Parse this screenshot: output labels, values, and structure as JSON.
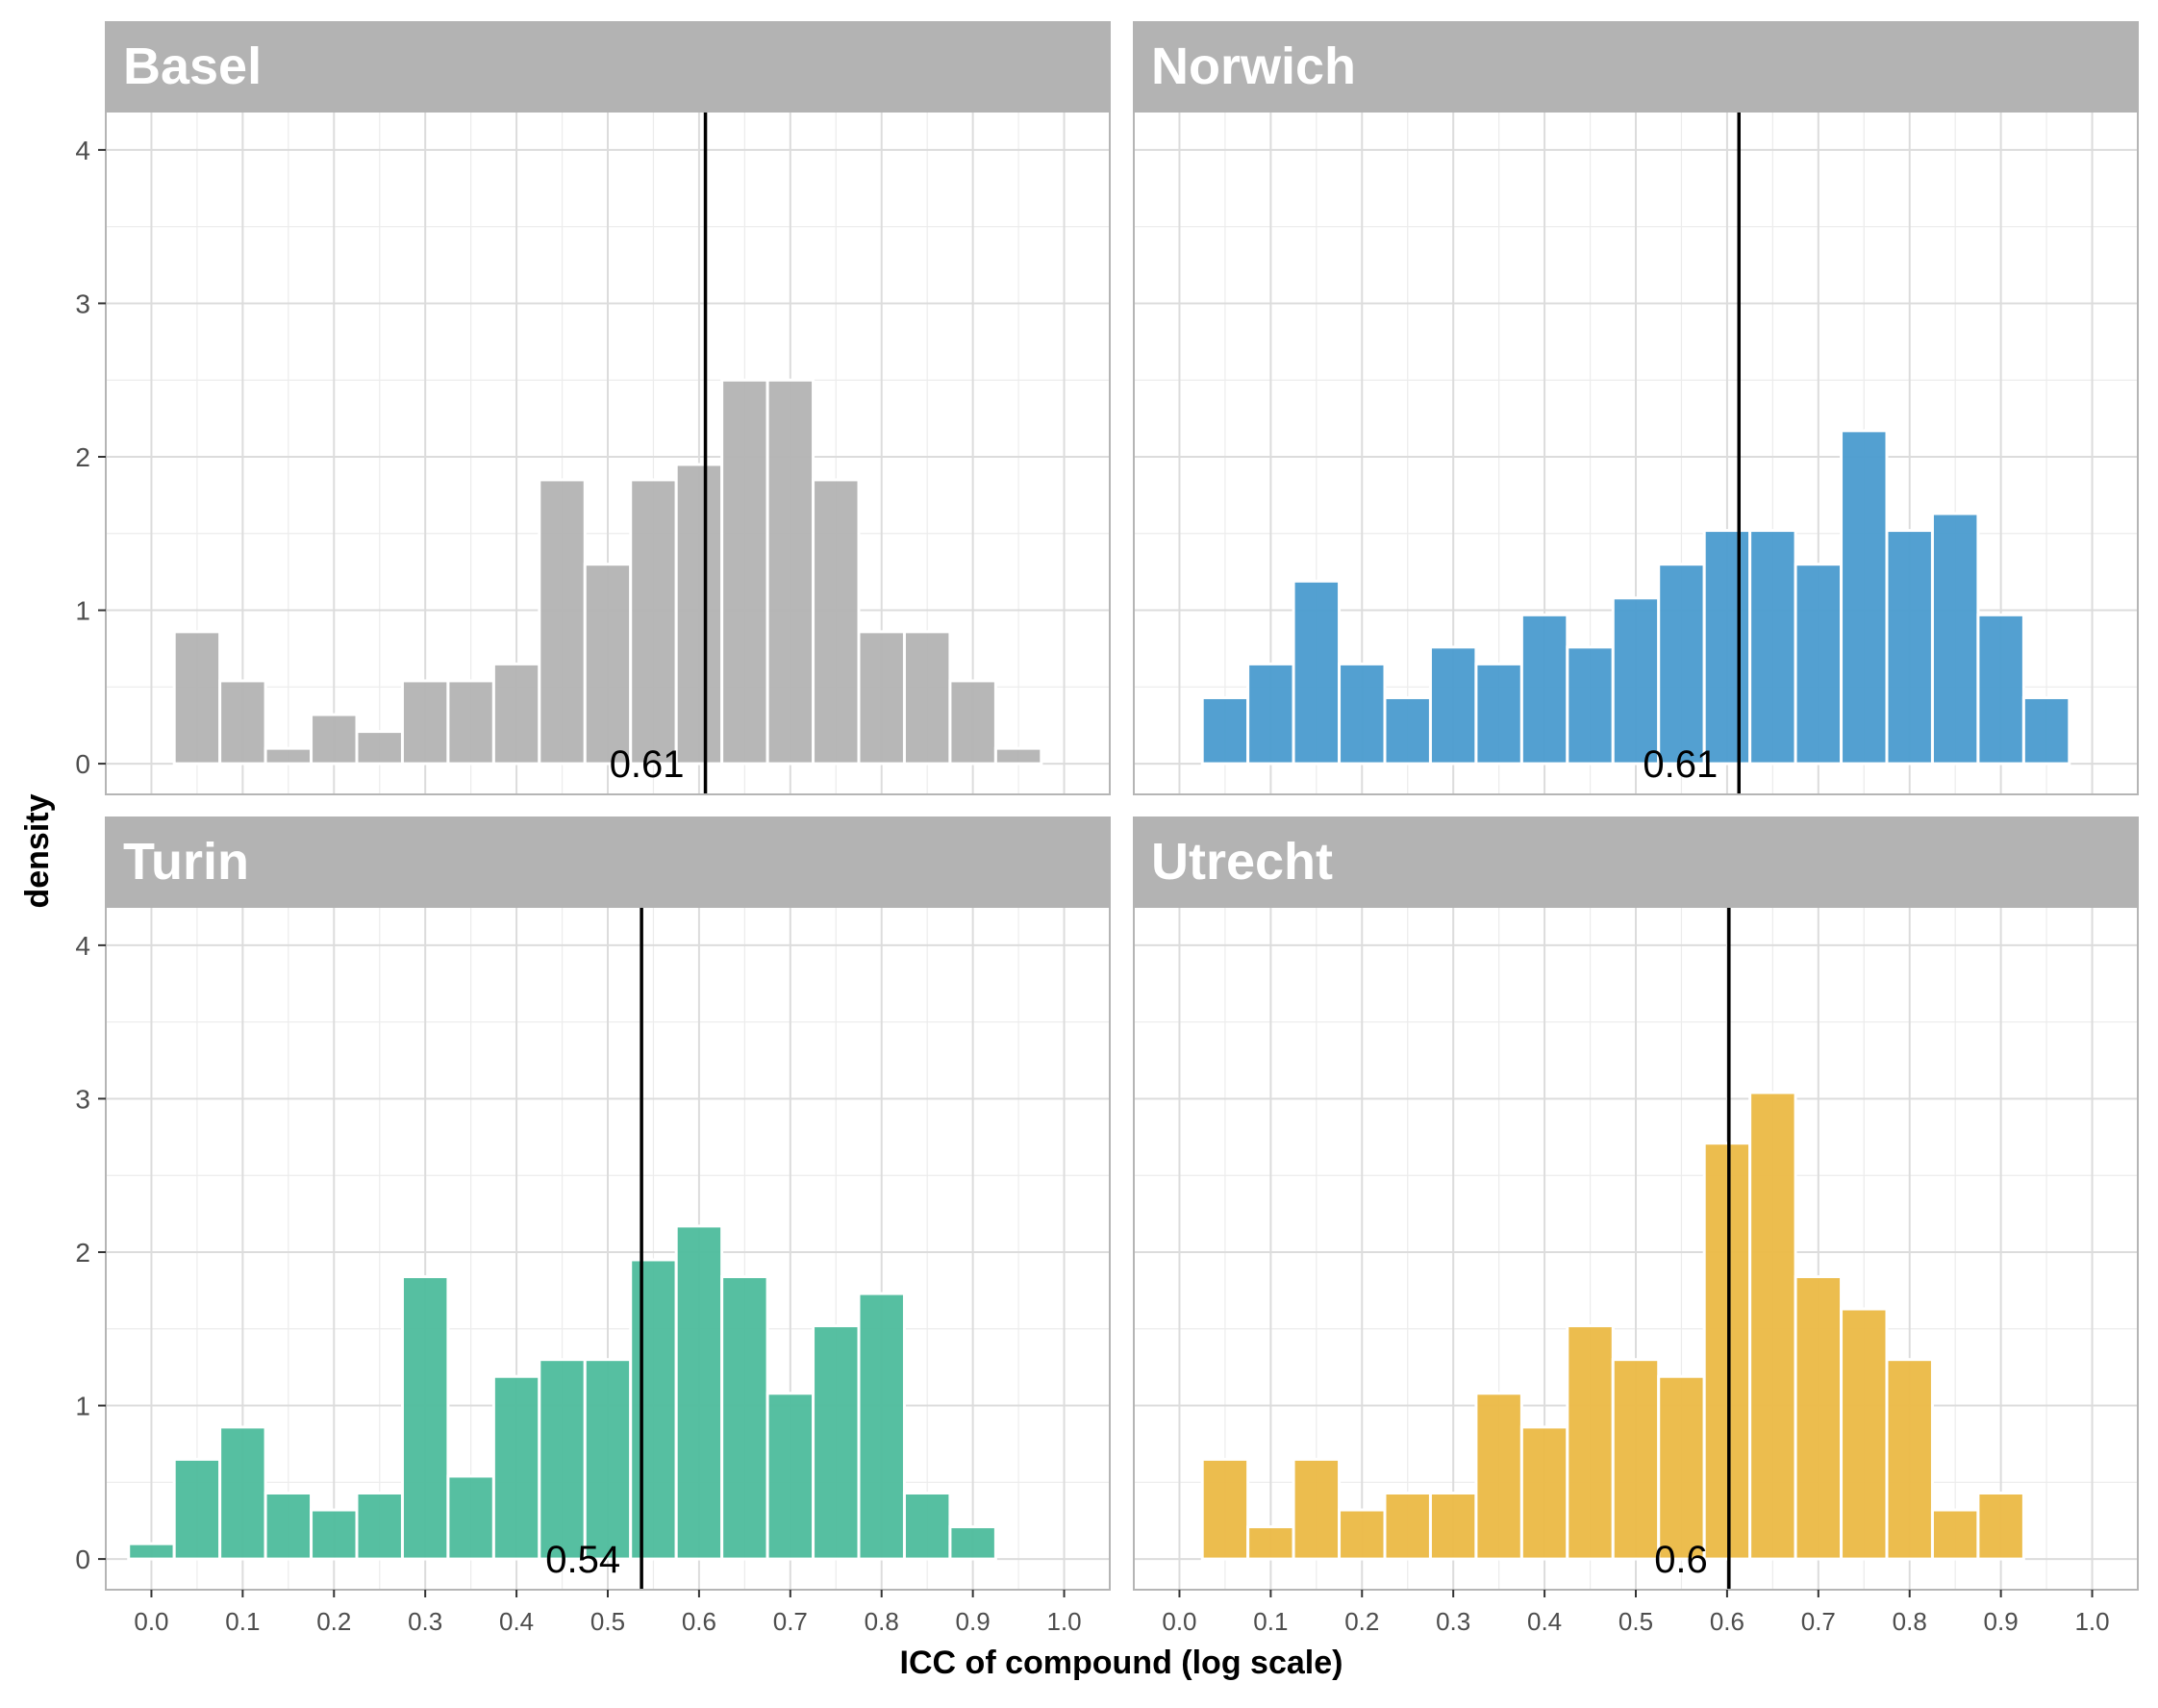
{
  "chart_data": {
    "type": "bar",
    "subtype": "faceted-histogram",
    "ylabel": "density",
    "xlabel": "ICC of compound (log scale)",
    "xlim": [
      -0.05,
      1.05
    ],
    "ylim": [
      -0.2,
      4.25
    ],
    "x_ticks": [
      "0.0",
      "0.1",
      "0.2",
      "0.3",
      "0.4",
      "0.5",
      "0.6",
      "0.7",
      "0.8",
      "0.9",
      "1.0"
    ],
    "y_ticks": [
      "0",
      "1",
      "2",
      "3",
      "4"
    ],
    "bin_centers": [
      0.0,
      0.05,
      0.1,
      0.15,
      0.2,
      0.25,
      0.3,
      0.35,
      0.4,
      0.45,
      0.5,
      0.55,
      0.6,
      0.65,
      0.7,
      0.75,
      0.8,
      0.85,
      0.9,
      0.95
    ],
    "bin_width": 0.05,
    "grid": true,
    "legend": "none",
    "panels": [
      {
        "name": "Basel",
        "color": "#b3b3b3",
        "values": [
          0,
          0.86,
          0.54,
          0.1,
          0.32,
          0.21,
          0.54,
          0.54,
          0.65,
          1.85,
          1.3,
          1.85,
          1.95,
          2.5,
          2.5,
          1.85,
          0.86,
          0.86,
          0.54,
          0.1
        ],
        "median": 0.607,
        "median_label": "0.61"
      },
      {
        "name": "Norwich",
        "color": "#4a9bcf",
        "values": [
          0,
          0.43,
          0.65,
          1.19,
          0.65,
          0.43,
          0.76,
          0.65,
          0.97,
          0.76,
          1.08,
          1.3,
          1.52,
          1.52,
          1.3,
          2.17,
          1.52,
          1.63,
          0.97,
          0.43
        ],
        "median": 0.613,
        "median_label": "0.61"
      },
      {
        "name": "Turin",
        "color": "#4dbc9c",
        "values": [
          0.1,
          0.65,
          0.86,
          0.43,
          0.32,
          0.43,
          1.84,
          0.54,
          1.19,
          1.3,
          1.3,
          1.95,
          2.17,
          1.84,
          1.08,
          1.52,
          1.73,
          0.43,
          0.21,
          0
        ],
        "median": 0.537,
        "median_label": "0.54"
      },
      {
        "name": "Utrecht",
        "color": "#ebb945",
        "values": [
          0,
          0.65,
          0.21,
          0.65,
          0.32,
          0.43,
          0.43,
          1.08,
          0.86,
          1.52,
          1.3,
          1.19,
          2.71,
          3.04,
          1.84,
          1.63,
          1.3,
          0.32,
          0.43,
          0
        ],
        "median": 0.602,
        "median_label": "0.6"
      }
    ]
  }
}
